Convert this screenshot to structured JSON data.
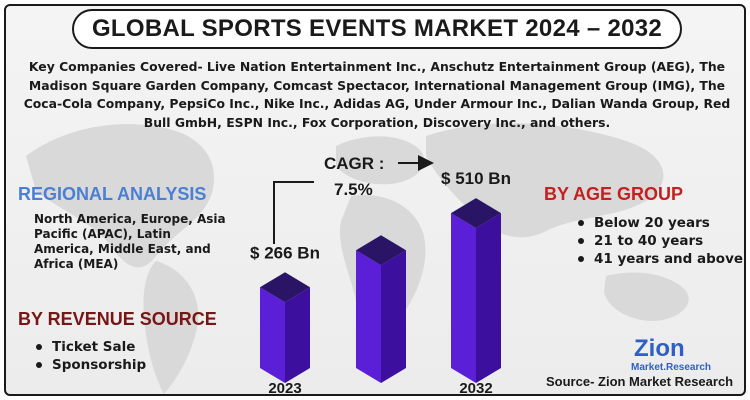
{
  "title": "GLOBAL SPORTS EVENTS MARKET 2024 – 2032",
  "companies_text": "Key Companies Covered- Live Nation Entertainment Inc., Anschutz Entertainment Group (AEG), The Madison Square Garden Company, Comcast Spectacor, International Management Group (IMG), The Coca-Cola Company, PepsiCo Inc., Nike Inc., Adidas AG, Under Armour Inc., Dalian Wanda Group, Red Bull GmbH, ESPN Inc., Fox Corporation, Discovery Inc., and others.",
  "regional": {
    "title": "REGIONAL ANALYSIS",
    "text": "North America, Europe, Asia Pacific (APAC), Latin America, Middle East, and Africa (MEA)"
  },
  "revenue": {
    "title": "BY REVENUE SOURCE",
    "items": [
      "Ticket Sale",
      "Sponsorship"
    ]
  },
  "age": {
    "title": "BY AGE GROUP",
    "items": [
      "Below 20 years",
      "21 to 40 years",
      "41 years and above"
    ]
  },
  "source": "Source- Zion Market Research",
  "logo": {
    "name": "Zion",
    "sub": "Market.Research"
  },
  "colors": {
    "bar_front": "#5a1fd6",
    "bar_side": "#3d0f9e",
    "bar_top": "#2a1466",
    "regional": "#4a7fd4",
    "revenue": "#7a1515",
    "age": "#c42020"
  },
  "chart_data": {
    "type": "bar",
    "categories": [
      "2023",
      "",
      "2032"
    ],
    "values": [
      266,
      388,
      510
    ],
    "value_labels": [
      "$ 266 Bn",
      "",
      "$ 510 Bn"
    ],
    "cagr_label": "CAGR :",
    "cagr_value": "7.5%",
    "ylim": [
      0,
      560
    ]
  }
}
